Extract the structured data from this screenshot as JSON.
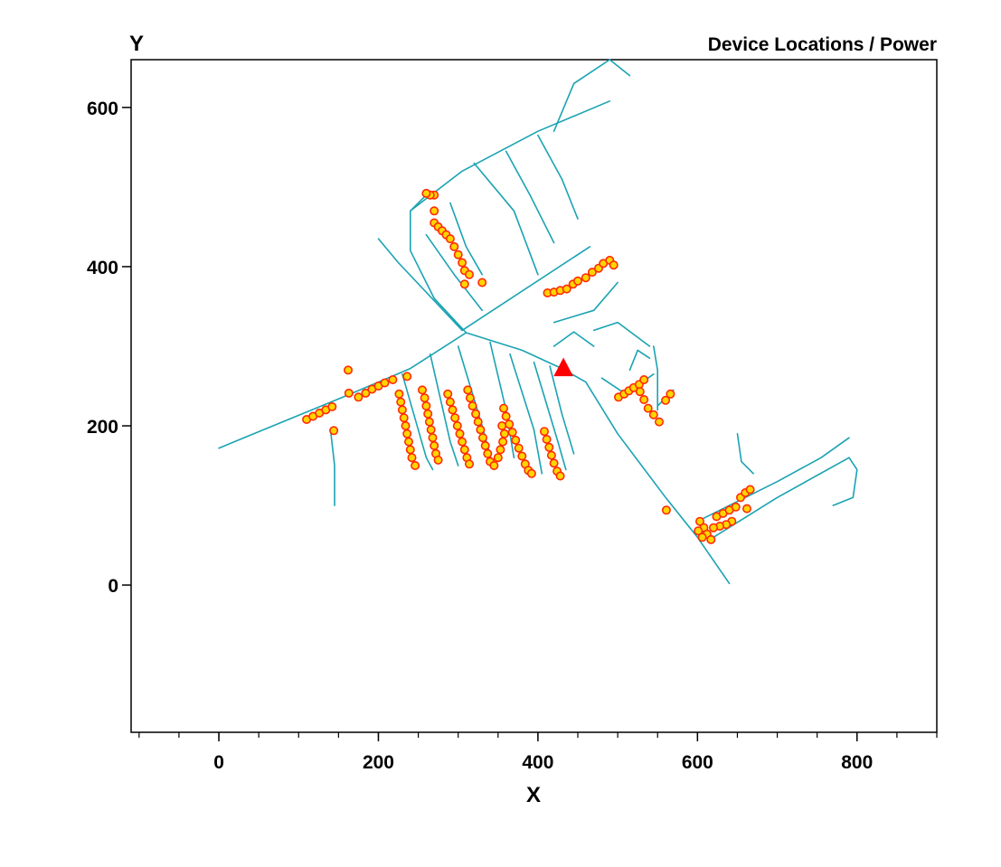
{
  "chart_data": {
    "type": "scatter",
    "title": "Device Locations / Power",
    "xlabel": "X",
    "ylabel": "Y",
    "xlim": [
      -110,
      900
    ],
    "ylim": [
      -185,
      660
    ],
    "x_ticks": [
      0,
      200,
      400,
      600,
      800
    ],
    "y_ticks": [
      0,
      200,
      400,
      600
    ],
    "x_minor_step": 50,
    "grid": false,
    "legend": "none",
    "colors": {
      "network": "#1aa3b3",
      "device_fill": "#ffd500",
      "device_edge": "#ff2a00",
      "source": "#ff0000",
      "axis": "#000000"
    },
    "series": [
      {
        "role": "network",
        "mark": "line",
        "color": "#1aa3b3",
        "segments": [
          [
            [
              0,
              172
            ],
            [
              80,
              205
            ],
            [
              160,
              238
            ],
            [
              240,
              272
            ],
            [
              310,
              317
            ],
            [
              380,
              295
            ],
            [
              430,
              272
            ],
            [
              460,
              255
            ],
            [
              500,
              190
            ],
            [
              560,
              110
            ],
            [
              600,
              60
            ],
            [
              640,
              2
            ]
          ],
          [
            [
              140,
              195
            ],
            [
              145,
              150
            ],
            [
              145,
              100
            ]
          ],
          [
            [
              310,
              317
            ],
            [
              270,
              360
            ],
            [
              240,
              420
            ],
            [
              240,
              470
            ],
            [
              305,
              520
            ],
            [
              400,
              570
            ],
            [
              490,
              608
            ]
          ],
          [
            [
              240,
              470
            ],
            [
              260,
              490
            ]
          ],
          [
            [
              305,
              320
            ],
            [
              465,
              425
            ]
          ],
          [
            [
              305,
              320
            ],
            [
              225,
              405
            ],
            [
              200,
              435
            ]
          ],
          [
            [
              330,
              345
            ],
            [
              295,
              390
            ],
            [
              260,
              440
            ]
          ],
          [
            [
              230,
              265
            ],
            [
              260,
              160
            ],
            [
              268,
              145
            ]
          ],
          [
            [
              265,
              290
            ],
            [
              290,
              180
            ],
            [
              300,
              150
            ]
          ],
          [
            [
              300,
              300
            ],
            [
              330,
              200
            ],
            [
              345,
              145
            ]
          ],
          [
            [
              340,
              305
            ],
            [
              360,
              220
            ],
            [
              370,
              160
            ]
          ],
          [
            [
              365,
              290
            ],
            [
              395,
              195
            ],
            [
              405,
              140
            ]
          ],
          [
            [
              395,
              280
            ],
            [
              425,
              180
            ],
            [
              435,
              145
            ]
          ],
          [
            [
              415,
              275
            ],
            [
              430,
              215
            ],
            [
              445,
              165
            ]
          ],
          [
            [
              320,
              530
            ],
            [
              370,
              470
            ],
            [
              400,
              390
            ]
          ],
          [
            [
              360,
              545
            ],
            [
              390,
              490
            ],
            [
              420,
              430
            ]
          ],
          [
            [
              400,
              565
            ],
            [
              430,
              510
            ],
            [
              450,
              460
            ]
          ],
          [
            [
              290,
              480
            ],
            [
              310,
              425
            ],
            [
              330,
              390
            ]
          ],
          [
            [
              420,
              330
            ],
            [
              470,
              345
            ],
            [
              500,
              380
            ]
          ],
          [
            [
              470,
              320
            ],
            [
              500,
              330
            ],
            [
              540,
              300
            ]
          ],
          [
            [
              480,
              260
            ],
            [
              510,
              240
            ],
            [
              545,
              265
            ]
          ],
          [
            [
              545,
              300
            ],
            [
              550,
              270
            ],
            [
              550,
              220
            ]
          ],
          [
            [
              600,
              80
            ],
            [
              700,
              130
            ],
            [
              755,
              160
            ],
            [
              790,
              185
            ]
          ],
          [
            [
              620,
              60
            ],
            [
              700,
              110
            ],
            [
              790,
              160
            ]
          ],
          [
            [
              790,
              160
            ],
            [
              800,
              145
            ],
            [
              795,
              110
            ],
            [
              770,
              100
            ]
          ],
          [
            [
              650,
              190
            ],
            [
              655,
              155
            ],
            [
              670,
              140
            ]
          ],
          [
            [
              420,
              570
            ],
            [
              445,
              630
            ],
            [
              490,
              660
            ],
            [
              515,
              640
            ]
          ],
          [
            [
              550,
              225
            ],
            [
              570,
              245
            ]
          ],
          [
            [
              420,
              300
            ],
            [
              445,
              318
            ],
            [
              470,
              300
            ]
          ],
          [
            [
              515,
              270
            ],
            [
              525,
              295
            ],
            [
              540,
              285
            ]
          ]
        ]
      },
      {
        "name": "Device Locations / Power",
        "role": "devices",
        "mark": "circle",
        "color": "#ffd500",
        "points": [
          [
            110,
            208
          ],
          [
            118,
            212
          ],
          [
            126,
            216
          ],
          [
            134,
            220
          ],
          [
            142,
            224
          ],
          [
            144,
            194
          ],
          [
            162,
            270
          ],
          [
            163,
            241
          ],
          [
            175,
            236
          ],
          [
            184,
            241
          ],
          [
            192,
            246
          ],
          [
            200,
            250
          ],
          [
            208,
            254
          ],
          [
            218,
            258
          ],
          [
            236,
            262
          ],
          [
            226,
            240
          ],
          [
            228,
            230
          ],
          [
            230,
            220
          ],
          [
            232,
            210
          ],
          [
            234,
            200
          ],
          [
            236,
            190
          ],
          [
            238,
            180
          ],
          [
            240,
            170
          ],
          [
            242,
            160
          ],
          [
            246,
            150
          ],
          [
            255,
            245
          ],
          [
            258,
            235
          ],
          [
            260,
            225
          ],
          [
            262,
            215
          ],
          [
            264,
            205
          ],
          [
            266,
            195
          ],
          [
            268,
            185
          ],
          [
            270,
            175
          ],
          [
            272,
            165
          ],
          [
            275,
            157
          ],
          [
            287,
            240
          ],
          [
            290,
            230
          ],
          [
            293,
            220
          ],
          [
            296,
            210
          ],
          [
            299,
            200
          ],
          [
            302,
            190
          ],
          [
            305,
            180
          ],
          [
            308,
            170
          ],
          [
            311,
            160
          ],
          [
            314,
            152
          ],
          [
            312,
            245
          ],
          [
            315,
            235
          ],
          [
            318,
            225
          ],
          [
            322,
            215
          ],
          [
            325,
            205
          ],
          [
            328,
            195
          ],
          [
            331,
            185
          ],
          [
            334,
            175
          ],
          [
            337,
            165
          ],
          [
            340,
            155
          ],
          [
            345,
            150
          ],
          [
            350,
            160
          ],
          [
            353,
            170
          ],
          [
            356,
            180
          ],
          [
            358,
            190
          ],
          [
            355,
            200
          ],
          [
            357,
            222
          ],
          [
            360,
            212
          ],
          [
            364,
            202
          ],
          [
            368,
            192
          ],
          [
            372,
            182
          ],
          [
            376,
            172
          ],
          [
            380,
            162
          ],
          [
            384,
            152
          ],
          [
            388,
            144
          ],
          [
            392,
            140
          ],
          [
            408,
            193
          ],
          [
            411,
            183
          ],
          [
            414,
            173
          ],
          [
            417,
            163
          ],
          [
            420,
            153
          ],
          [
            424,
            143
          ],
          [
            428,
            137
          ],
          [
            270,
            490
          ],
          [
            265,
            490
          ],
          [
            260,
            492
          ],
          [
            270,
            470
          ],
          [
            270,
            455
          ],
          [
            275,
            450
          ],
          [
            280,
            445
          ],
          [
            285,
            440
          ],
          [
            290,
            435
          ],
          [
            295,
            425
          ],
          [
            300,
            415
          ],
          [
            305,
            405
          ],
          [
            308,
            395
          ],
          [
            314,
            390
          ],
          [
            330,
            380
          ],
          [
            308,
            378
          ],
          [
            412,
            367
          ],
          [
            420,
            368
          ],
          [
            428,
            370
          ],
          [
            436,
            372
          ],
          [
            444,
            378
          ],
          [
            450,
            382
          ],
          [
            460,
            386
          ],
          [
            468,
            393
          ],
          [
            476,
            398
          ],
          [
            482,
            404
          ],
          [
            490,
            408
          ],
          [
            495,
            402
          ],
          [
            501,
            236
          ],
          [
            508,
            240
          ],
          [
            514,
            244
          ],
          [
            520,
            248
          ],
          [
            527,
            252
          ],
          [
            533,
            258
          ],
          [
            528,
            243
          ],
          [
            533,
            233
          ],
          [
            538,
            222
          ],
          [
            545,
            214
          ],
          [
            552,
            205
          ],
          [
            560,
            232
          ],
          [
            566,
            240
          ],
          [
            561,
            94
          ],
          [
            603,
            80
          ],
          [
            608,
            72
          ],
          [
            612,
            64
          ],
          [
            617,
            57
          ],
          [
            601,
            68
          ],
          [
            606,
            60
          ],
          [
            624,
            86
          ],
          [
            632,
            90
          ],
          [
            640,
            94
          ],
          [
            648,
            98
          ],
          [
            654,
            110
          ],
          [
            660,
            116
          ],
          [
            666,
            120
          ],
          [
            662,
            96
          ],
          [
            643,
            80
          ],
          [
            636,
            76
          ],
          [
            628,
            74
          ],
          [
            620,
            72
          ]
        ]
      },
      {
        "name": "",
        "role": "source",
        "mark": "triangle",
        "color": "#ff0000",
        "points": [
          [
            432,
            272
          ]
        ]
      }
    ]
  }
}
